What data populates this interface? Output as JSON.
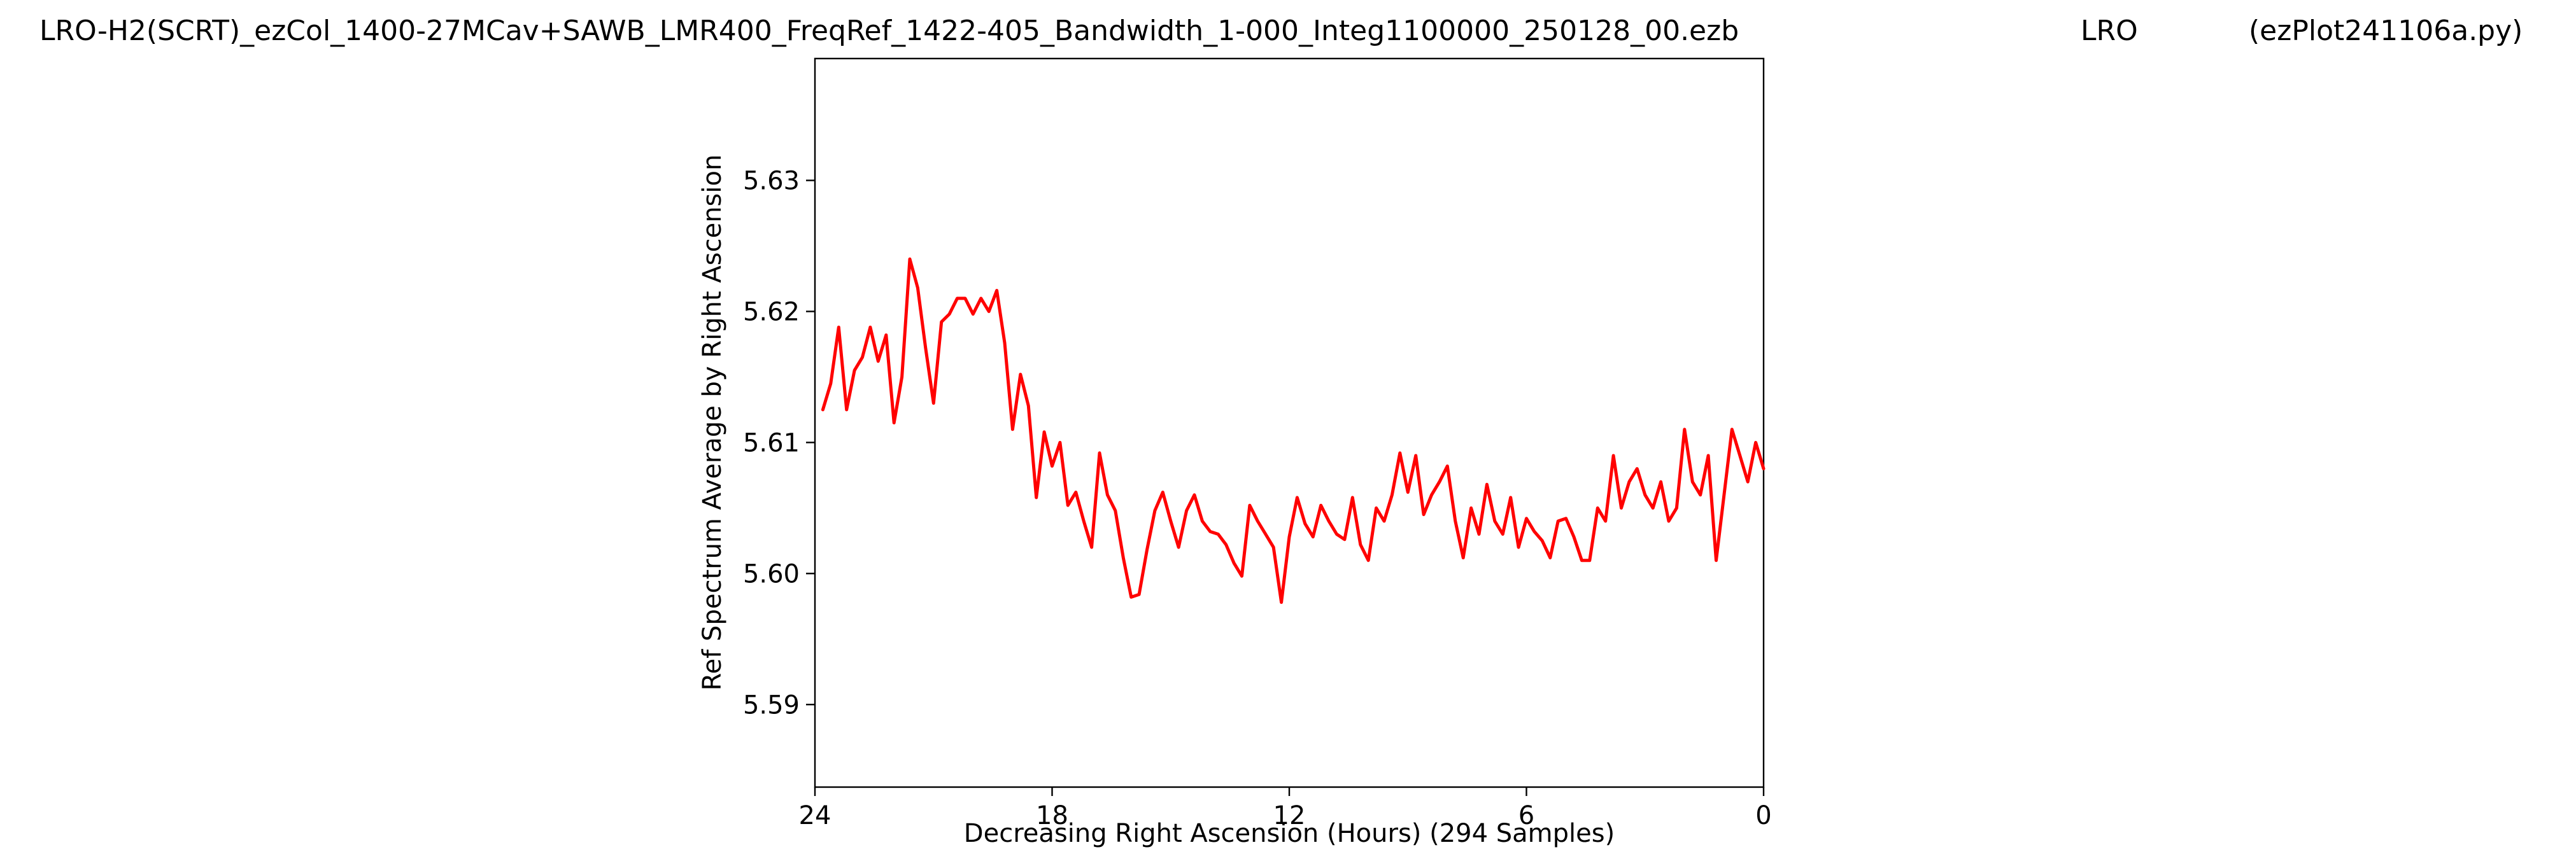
{
  "header": {
    "file_title": "LRO-H2(SCRT)_ezCol_1400-27MCav+SAWB_LMR400_FreqRef_1422-405_Bandwidth_1-000_Integ1100000_250128_00.ezb",
    "station": "LRO",
    "program": "(ezPlot241106a.py)"
  },
  "chart_data": {
    "type": "line",
    "title": "LRO-H2(SCRT)_ezCol_1400-27MCav+SAWB_LMR400_FreqRef_1422-405_Bandwidth_1-000_Integ1100000_250128_00.ezb",
    "xlabel": "Decreasing Right Ascension (Hours) (294 Samples)",
    "ylabel": "Ref Spectrum Average by Right Ascension",
    "xlim": [
      24,
      0
    ],
    "ylim": [
      5.5837,
      5.6393
    ],
    "x_reversed": true,
    "x_ticks": [
      24,
      18,
      12,
      6,
      0
    ],
    "x_tick_labels": [
      "24",
      "18",
      "12",
      "6",
      "0"
    ],
    "y_ticks": [
      5.59,
      5.6,
      5.61,
      5.62,
      5.63
    ],
    "y_tick_labels": [
      "5.59",
      "5.60",
      "5.61",
      "5.62",
      "5.63"
    ],
    "grid": false,
    "legend": "none",
    "series": [
      {
        "color": "#ff0000",
        "x": [
          23.8,
          23.6,
          23.4,
          23.2,
          23.0,
          22.8,
          22.6,
          22.4,
          22.2,
          22.0,
          21.8,
          21.6,
          21.4,
          21.2,
          21.0,
          20.8,
          20.6,
          20.4,
          20.2,
          20.0,
          19.8,
          19.6,
          19.4,
          19.2,
          19.0,
          18.8,
          18.6,
          18.4,
          18.2,
          18.0,
          17.8,
          17.6,
          17.4,
          17.2,
          17.0,
          16.8,
          16.6,
          16.4,
          16.2,
          16.0,
          15.8,
          15.6,
          15.4,
          15.2,
          15.0,
          14.8,
          14.6,
          14.4,
          14.2,
          14.0,
          13.8,
          13.6,
          13.4,
          13.2,
          13.0,
          12.8,
          12.6,
          12.4,
          12.2,
          12.0,
          11.8,
          11.6,
          11.4,
          11.2,
          11.0,
          10.8,
          10.6,
          10.4,
          10.2,
          10.0,
          9.8,
          9.6,
          9.4,
          9.2,
          9.0,
          8.8,
          8.6,
          8.4,
          8.2,
          8.0,
          7.8,
          7.6,
          7.4,
          7.2,
          7.0,
          6.8,
          6.6,
          6.4,
          6.2,
          6.0,
          5.8,
          5.6,
          5.4,
          5.2,
          5.0,
          4.8,
          4.6,
          4.4,
          4.2,
          4.0,
          3.8,
          3.6,
          3.4,
          3.2,
          3.0,
          2.8,
          2.6,
          2.4,
          2.2,
          2.0,
          1.8,
          1.6,
          1.4,
          1.2,
          1.0,
          0.8,
          0.6,
          0.4,
          0.2,
          0.0
        ],
        "values": [
          5.6125,
          5.6145,
          5.6188,
          5.6125,
          5.6155,
          5.6165,
          5.6188,
          5.6162,
          5.6182,
          5.6115,
          5.615,
          5.624,
          5.6218,
          5.6172,
          5.613,
          5.6192,
          5.6198,
          5.621,
          5.621,
          5.6198,
          5.621,
          5.62,
          5.6216,
          5.6176,
          5.611,
          5.6152,
          5.6128,
          5.6058,
          5.6108,
          5.6082,
          5.61,
          5.6052,
          5.6062,
          5.604,
          5.602,
          5.6092,
          5.606,
          5.6048,
          5.6012,
          5.5982,
          5.5984,
          5.6018,
          5.6048,
          5.6062,
          5.604,
          5.602,
          5.6048,
          5.606,
          5.604,
          5.6032,
          5.603,
          5.6022,
          5.6008,
          5.5998,
          5.6052,
          5.604,
          5.603,
          5.602,
          5.5978,
          5.6028,
          5.6058,
          5.6038,
          5.6028,
          5.6052,
          5.604,
          5.603,
          5.6026,
          5.6058,
          5.6022,
          5.601,
          5.605,
          5.604,
          5.606,
          5.6092,
          5.6062,
          5.609,
          5.6045,
          5.606,
          5.607,
          5.6082,
          5.604,
          5.6012,
          5.605,
          5.603,
          5.6068,
          5.604,
          5.603,
          5.6058,
          5.602,
          5.6042,
          5.6032,
          5.6025,
          5.6012,
          5.604,
          5.6042,
          5.6028,
          5.601,
          5.601,
          5.605,
          5.604,
          5.609,
          5.605,
          5.607,
          5.608,
          5.606,
          5.605,
          5.607,
          5.604,
          5.605,
          5.611,
          5.607,
          5.606,
          5.609,
          5.601,
          5.606,
          5.611,
          5.609,
          5.607,
          5.61,
          5.608
        ],
        "values_note": ""
      }
    ]
  }
}
